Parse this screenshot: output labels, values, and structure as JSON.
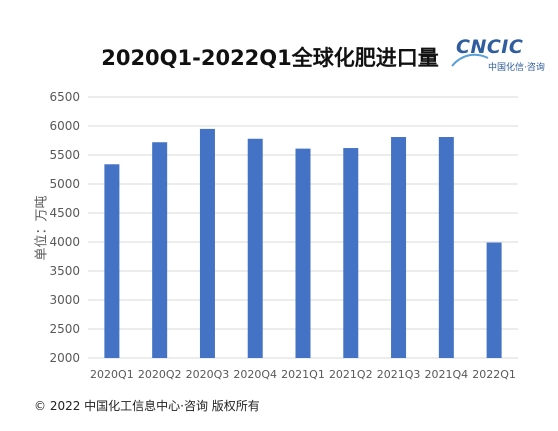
{
  "chart_data": {
    "type": "bar",
    "title": "2020Q1-2022Q1全球化肥进口量",
    "xlabel": "",
    "ylabel": "单位：万吨",
    "categories": [
      "2020Q1",
      "2020Q2",
      "2020Q3",
      "2020Q4",
      "2021Q1",
      "2021Q2",
      "2021Q3",
      "2021Q4",
      "2022Q1"
    ],
    "values": [
      5340,
      5720,
      5950,
      5780,
      5610,
      5620,
      5810,
      5810,
      3990
    ],
    "ylim": [
      2000,
      6500
    ],
    "yticks": [
      2000,
      2500,
      3000,
      3500,
      4000,
      4500,
      5000,
      5500,
      6000,
      6500
    ],
    "grid": true,
    "bar_color": "#4472c4"
  },
  "logo": {
    "main": "CNCIC",
    "sub": "中国化信·咨询"
  },
  "footer": {
    "copyright": "© 2022 中国化工信息中心·咨询 版权所有"
  }
}
